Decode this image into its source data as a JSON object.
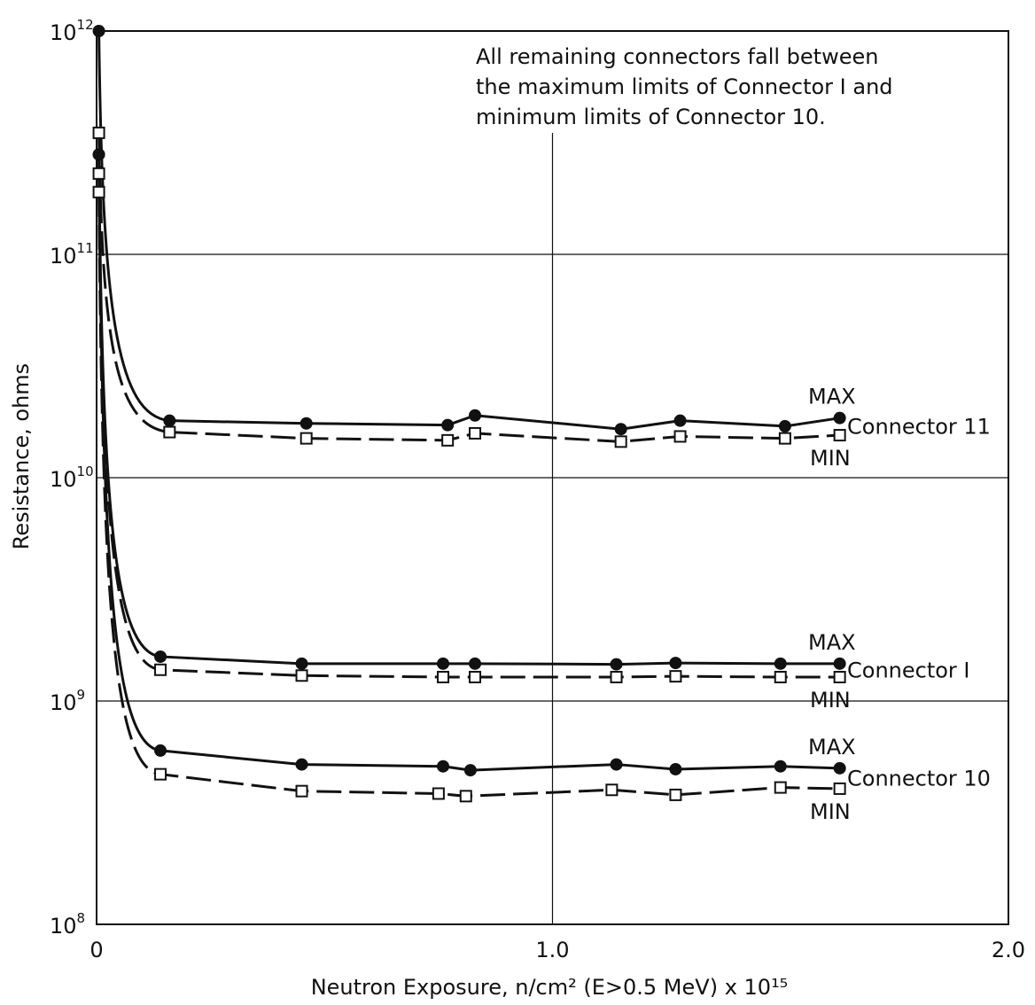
{
  "chart_data": {
    "type": "line",
    "xlabel": "Neutron Exposure, n/cm² (E>0.5 MeV) x 10¹⁵",
    "ylabel": "Resistance, ohms",
    "xlim": [
      0,
      2.0
    ],
    "ylim": [
      100000000.0,
      1000000000000.0
    ],
    "y_scale": "log",
    "grid": true,
    "x_ticks": [
      {
        "value": 0,
        "label": "0"
      },
      {
        "value": 1.0,
        "label": "1.0"
      },
      {
        "value": 2.0,
        "label": "2.0"
      }
    ],
    "y_ticks": [
      {
        "value": 100000000.0,
        "label": "10",
        "exp": "8"
      },
      {
        "value": 1000000000.0,
        "label": "10",
        "exp": "9"
      },
      {
        "value": 10000000000.0,
        "label": "10",
        "exp": "10"
      },
      {
        "value": 100000000000.0,
        "label": "10",
        "exp": "11"
      },
      {
        "value": 1000000000000.0,
        "label": "10",
        "exp": "12"
      }
    ],
    "annotation": [
      "All remaining connectors fall between",
      "the maximum limits of Connector I and",
      "minimum limits of Connector 10."
    ],
    "groups": [
      {
        "name": "Connector 11",
        "max_label": "MAX",
        "min_label": "MIN",
        "max_points": [
          [
            0.005,
            1000000000000.0
          ],
          [
            0.16,
            18000000000.0
          ],
          [
            0.46,
            17500000000.0
          ],
          [
            0.77,
            17200000000.0
          ],
          [
            0.83,
            19000000000.0
          ],
          [
            1.15,
            16500000000.0
          ],
          [
            1.28,
            18000000000.0
          ],
          [
            1.51,
            17000000000.0
          ],
          [
            1.63,
            18500000000.0
          ]
        ],
        "min_points": [
          [
            0.005,
            350000000000.0
          ],
          [
            0.16,
            16000000000.0
          ],
          [
            0.46,
            15000000000.0
          ],
          [
            0.77,
            14700000000.0
          ],
          [
            0.83,
            15800000000.0
          ],
          [
            1.15,
            14500000000.0
          ],
          [
            1.28,
            15300000000.0
          ],
          [
            1.51,
            15000000000.0
          ],
          [
            1.63,
            15500000000.0
          ]
        ]
      },
      {
        "name": "Connector I",
        "max_label": "MAX",
        "min_label": "MIN",
        "max_points": [
          [
            0.005,
            280000000000.0
          ],
          [
            0.14,
            1580000000.0
          ],
          [
            0.45,
            1470000000.0
          ],
          [
            0.76,
            1470000000.0
          ],
          [
            0.83,
            1470000000.0
          ],
          [
            1.14,
            1460000000.0
          ],
          [
            1.27,
            1480000000.0
          ],
          [
            1.5,
            1470000000.0
          ],
          [
            1.63,
            1470000000.0
          ]
        ],
        "min_points": [
          [
            0.005,
            230000000000.0
          ],
          [
            0.14,
            1380000000.0
          ],
          [
            0.45,
            1300000000.0
          ],
          [
            0.76,
            1280000000.0
          ],
          [
            0.83,
            1280000000.0
          ],
          [
            1.14,
            1280000000.0
          ],
          [
            1.27,
            1290000000.0
          ],
          [
            1.5,
            1280000000.0
          ],
          [
            1.63,
            1280000000.0
          ]
        ]
      },
      {
        "name": "Connector 10",
        "max_label": "MAX",
        "min_label": "MIN",
        "max_points": [
          [
            0.005,
            280000000000.0
          ],
          [
            0.14,
            600000000.0
          ],
          [
            0.45,
            520000000.0
          ],
          [
            0.76,
            510000000.0
          ],
          [
            0.82,
            490000000.0
          ],
          [
            1.14,
            520000000.0
          ],
          [
            1.27,
            495000000.0
          ],
          [
            1.5,
            510000000.0
          ],
          [
            1.63,
            500000000.0
          ]
        ],
        "min_points": [
          [
            0.005,
            190000000000.0
          ],
          [
            0.14,
            470000000.0
          ],
          [
            0.45,
            395000000.0
          ],
          [
            0.75,
            385000000.0
          ],
          [
            0.81,
            375000000.0
          ],
          [
            1.13,
            400000000.0
          ],
          [
            1.27,
            380000000.0
          ],
          [
            1.5,
            410000000.0
          ],
          [
            1.63,
            405000000.0
          ]
        ]
      }
    ]
  }
}
